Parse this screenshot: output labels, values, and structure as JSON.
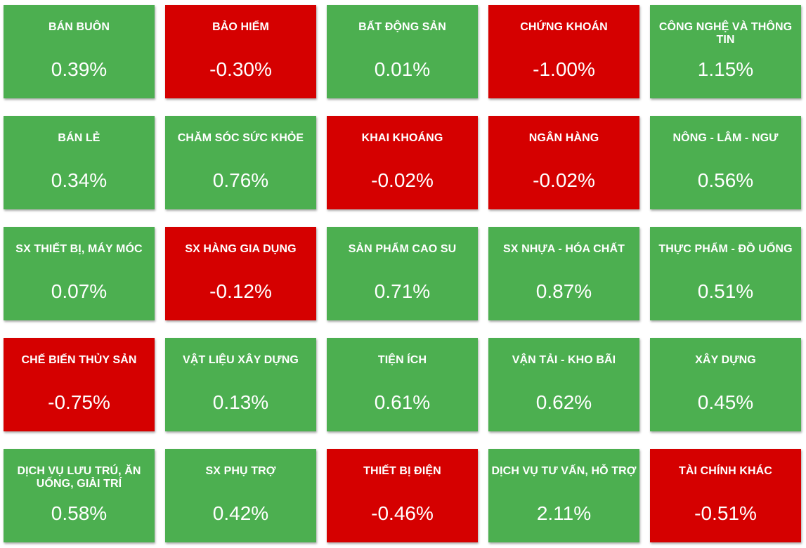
{
  "colors": {
    "up": "#4caf50",
    "down": "#d50000",
    "text": "#ffffff"
  },
  "sectors": [
    {
      "name": "BÁN BUÔN",
      "change": "0.39%",
      "status": "up"
    },
    {
      "name": "BẢO HIỂM",
      "change": "-0.30%",
      "status": "down"
    },
    {
      "name": "BẤT ĐỘNG SẢN",
      "change": "0.01%",
      "status": "up"
    },
    {
      "name": "CHỨNG KHOÁN",
      "change": "-1.00%",
      "status": "down"
    },
    {
      "name": "CÔNG NGHỆ VÀ THÔNG TIN",
      "change": "1.15%",
      "status": "up"
    },
    {
      "name": "BÁN LẺ",
      "change": "0.34%",
      "status": "up"
    },
    {
      "name": "CHĂM SÓC SỨC KHỎE",
      "change": "0.76%",
      "status": "up"
    },
    {
      "name": "KHAI KHOÁNG",
      "change": "-0.02%",
      "status": "down"
    },
    {
      "name": "NGÂN HÀNG",
      "change": "-0.02%",
      "status": "down"
    },
    {
      "name": "NÔNG - LÂM - NGƯ",
      "change": "0.56%",
      "status": "up"
    },
    {
      "name": "SX THIẾT BỊ, MÁY MÓC",
      "change": "0.07%",
      "status": "up"
    },
    {
      "name": "SX HÀNG GIA DỤNG",
      "change": "-0.12%",
      "status": "down"
    },
    {
      "name": "SẢN PHẨM CAO SU",
      "change": "0.71%",
      "status": "up"
    },
    {
      "name": "SX NHỰA - HÓA CHẤT",
      "change": "0.87%",
      "status": "up"
    },
    {
      "name": "THỰC PHẨM - ĐỒ UỐNG",
      "change": "0.51%",
      "status": "up"
    },
    {
      "name": "CHẾ BIẾN THỦY SẢN",
      "change": "-0.75%",
      "status": "down"
    },
    {
      "name": "VẬT LIỆU XÂY DỰNG",
      "change": "0.13%",
      "status": "up"
    },
    {
      "name": "TIỆN ÍCH",
      "change": "0.61%",
      "status": "up"
    },
    {
      "name": "VẬN TẢI - KHO BÃI",
      "change": "0.62%",
      "status": "up"
    },
    {
      "name": "XÂY DỰNG",
      "change": "0.45%",
      "status": "up"
    },
    {
      "name": "DỊCH VỤ LƯU TRÚ, ĂN UỐNG, GIẢI TRÍ",
      "change": "0.58%",
      "status": "up"
    },
    {
      "name": "SX PHỤ TRỢ",
      "change": "0.42%",
      "status": "up"
    },
    {
      "name": "THIẾT BỊ ĐIỆN",
      "change": "-0.46%",
      "status": "down"
    },
    {
      "name": "DỊCH VỤ TƯ VẤN, HỖ TRỢ",
      "change": "2.11%",
      "status": "up"
    },
    {
      "name": "TÀI CHÍNH KHÁC",
      "change": "-0.51%",
      "status": "down"
    }
  ]
}
